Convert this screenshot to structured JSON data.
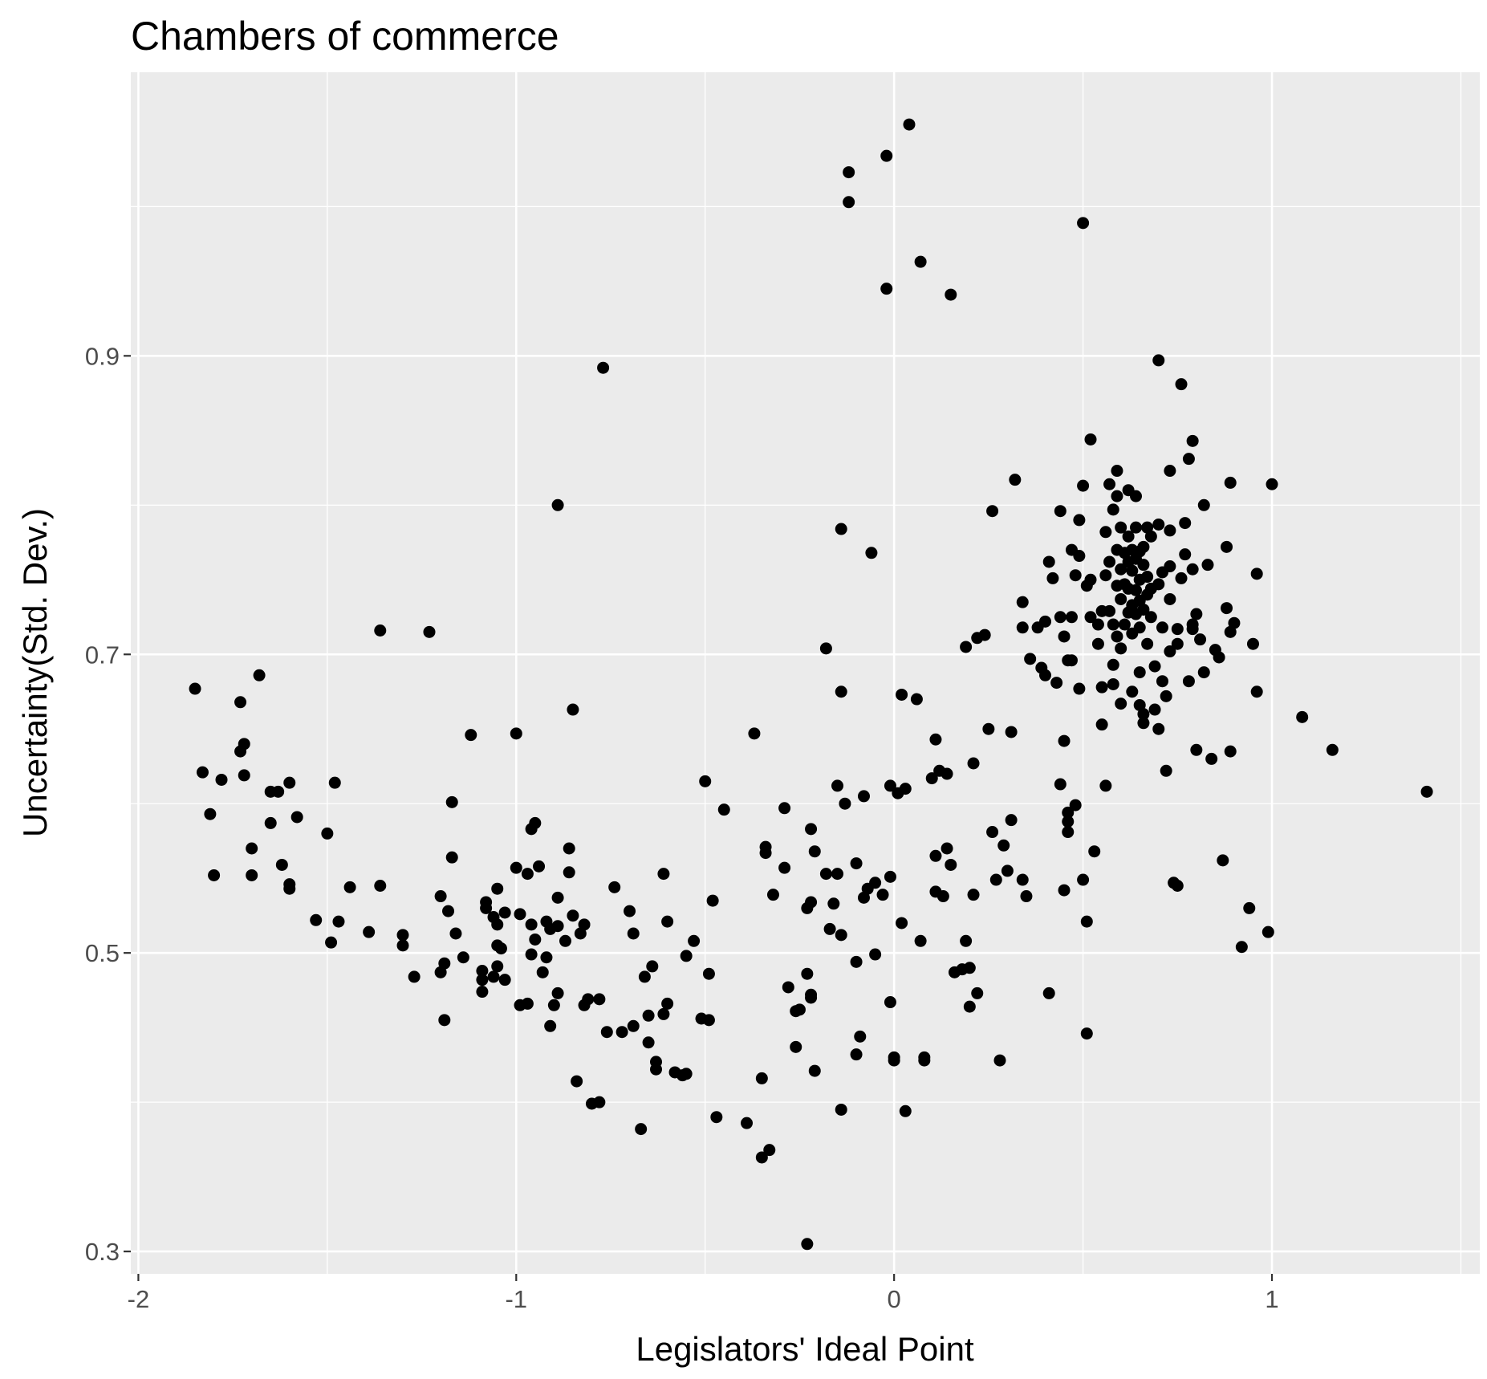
{
  "chart_data": {
    "type": "scatter",
    "title": "Chambers of commerce",
    "xlabel": "Legislators' Ideal Point",
    "ylabel": "Uncertainty(Std. Dev.)",
    "xlim": [
      -2.02,
      1.55
    ],
    "ylim": [
      0.285,
      1.09
    ],
    "x_ticks": [
      -2,
      -1,
      0,
      1
    ],
    "x_tick_labels": [
      "-2",
      "-1",
      "0",
      "1"
    ],
    "y_ticks": [
      0.3,
      0.5,
      0.7,
      0.9
    ],
    "y_tick_labels": [
      "0.3",
      "0.5",
      "0.7",
      "0.9"
    ],
    "x_minor_ticks": [
      -1.5,
      -0.5,
      0.5,
      1.5
    ],
    "y_minor_ticks": [
      0.4,
      0.6,
      0.8,
      1.0
    ],
    "grid": true,
    "panel_background": "#ebebeb",
    "point_color": "#000000",
    "points": [
      [
        -1.85,
        0.677
      ],
      [
        -1.68,
        0.686
      ],
      [
        -1.73,
        0.668
      ],
      [
        -1.73,
        0.635
      ],
      [
        -1.72,
        0.64
      ],
      [
        -1.72,
        0.619
      ],
      [
        -1.83,
        0.621
      ],
      [
        -1.78,
        0.616
      ],
      [
        -1.81,
        0.593
      ],
      [
        -1.8,
        0.552
      ],
      [
        -1.7,
        0.57
      ],
      [
        -1.7,
        0.552
      ],
      [
        -1.63,
        0.608
      ],
      [
        -1.65,
        0.608
      ],
      [
        -1.6,
        0.614
      ],
      [
        -1.58,
        0.591
      ],
      [
        -1.65,
        0.587
      ],
      [
        -1.62,
        0.559
      ],
      [
        -1.6,
        0.546
      ],
      [
        -1.6,
        0.543
      ],
      [
        -1.48,
        0.614
      ],
      [
        -1.5,
        0.58
      ],
      [
        -1.53,
        0.522
      ],
      [
        -1.47,
        0.521
      ],
      [
        -1.49,
        0.507
      ],
      [
        -1.44,
        0.544
      ],
      [
        -1.36,
        0.716
      ],
      [
        -1.23,
        0.715
      ],
      [
        -1.36,
        0.545
      ],
      [
        -1.39,
        0.514
      ],
      [
        -1.3,
        0.512
      ],
      [
        -1.3,
        0.505
      ],
      [
        -1.27,
        0.484
      ],
      [
        -1.2,
        0.538
      ],
      [
        -1.18,
        0.528
      ],
      [
        -1.17,
        0.601
      ],
      [
        -1.17,
        0.564
      ],
      [
        -1.16,
        0.513
      ],
      [
        -1.19,
        0.493
      ],
      [
        -1.2,
        0.487
      ],
      [
        -1.19,
        0.455
      ],
      [
        -1.14,
        0.497
      ],
      [
        -1.12,
        0.646
      ],
      [
        -1.09,
        0.488
      ],
      [
        -1.09,
        0.482
      ],
      [
        -1.09,
        0.474
      ],
      [
        -1.08,
        0.53
      ],
      [
        -1.08,
        0.534
      ],
      [
        -1.06,
        0.524
      ],
      [
        -1.05,
        0.543
      ],
      [
        -1.05,
        0.519
      ],
      [
        -1.05,
        0.505
      ],
      [
        -1.04,
        0.503
      ],
      [
        -1.05,
        0.491
      ],
      [
        -1.06,
        0.484
      ],
      [
        -1.03,
        0.527
      ],
      [
        -1.03,
        0.482
      ],
      [
        -1.0,
        0.647
      ],
      [
        -1.0,
        0.557
      ],
      [
        -0.99,
        0.526
      ],
      [
        -0.99,
        0.465
      ],
      [
        -0.97,
        0.466
      ],
      [
        -0.96,
        0.583
      ],
      [
        -0.96,
        0.519
      ],
      [
        -0.95,
        0.587
      ],
      [
        -0.95,
        0.509
      ],
      [
        -0.97,
        0.553
      ],
      [
        -0.96,
        0.499
      ],
      [
        -0.94,
        0.558
      ],
      [
        -0.93,
        0.487
      ],
      [
        -0.92,
        0.521
      ],
      [
        -0.92,
        0.497
      ],
      [
        -0.91,
        0.516
      ],
      [
        -0.91,
        0.451
      ],
      [
        -0.9,
        0.465
      ],
      [
        -0.89,
        0.8
      ],
      [
        -0.89,
        0.537
      ],
      [
        -0.89,
        0.518
      ],
      [
        -0.89,
        0.473
      ],
      [
        -0.87,
        0.508
      ],
      [
        -0.86,
        0.57
      ],
      [
        -0.86,
        0.554
      ],
      [
        -0.85,
        0.663
      ],
      [
        -0.85,
        0.525
      ],
      [
        -0.83,
        0.513
      ],
      [
        -0.82,
        0.519
      ],
      [
        -0.82,
        0.465
      ],
      [
        -0.81,
        0.469
      ],
      [
        -0.84,
        0.414
      ],
      [
        -0.8,
        0.399
      ],
      [
        -0.78,
        0.4
      ],
      [
        -0.78,
        0.469
      ],
      [
        -0.77,
        0.892
      ],
      [
        -0.76,
        0.447
      ],
      [
        -0.74,
        0.544
      ],
      [
        -0.72,
        0.447
      ],
      [
        -0.7,
        0.528
      ],
      [
        -0.69,
        0.513
      ],
      [
        -0.69,
        0.451
      ],
      [
        -0.67,
        0.382
      ],
      [
        -0.66,
        0.484
      ],
      [
        -0.64,
        0.491
      ],
      [
        -0.65,
        0.458
      ],
      [
        -0.65,
        0.44
      ],
      [
        -0.63,
        0.427
      ],
      [
        -0.63,
        0.422
      ],
      [
        -0.61,
        0.553
      ],
      [
        -0.6,
        0.521
      ],
      [
        -0.6,
        0.466
      ],
      [
        -0.61,
        0.459
      ],
      [
        -0.58,
        0.42
      ],
      [
        -0.56,
        0.418
      ],
      [
        -0.55,
        0.419
      ],
      [
        -0.55,
        0.498
      ],
      [
        -0.53,
        0.508
      ],
      [
        -0.51,
        0.456
      ],
      [
        -0.5,
        0.615
      ],
      [
        -0.49,
        0.486
      ],
      [
        -0.49,
        0.455
      ],
      [
        -0.48,
        0.535
      ],
      [
        -0.47,
        0.39
      ],
      [
        -0.45,
        0.596
      ],
      [
        -0.39,
        0.386
      ],
      [
        -0.37,
        0.647
      ],
      [
        -0.35,
        0.416
      ],
      [
        -0.35,
        0.363
      ],
      [
        -0.34,
        0.571
      ],
      [
        -0.34,
        0.567
      ],
      [
        -0.32,
        0.539
      ],
      [
        -0.33,
        0.368
      ],
      [
        -0.29,
        0.597
      ],
      [
        -0.29,
        0.557
      ],
      [
        -0.28,
        0.477
      ],
      [
        -0.26,
        0.437
      ],
      [
        -0.26,
        0.461
      ],
      [
        -0.25,
        0.462
      ],
      [
        -0.23,
        0.53
      ],
      [
        -0.23,
        0.486
      ],
      [
        -0.22,
        0.583
      ],
      [
        -0.22,
        0.534
      ],
      [
        -0.22,
        0.472
      ],
      [
        -0.22,
        0.47
      ],
      [
        -0.21,
        0.568
      ],
      [
        -0.21,
        0.421
      ],
      [
        -0.23,
        0.305
      ],
      [
        -0.18,
        0.704
      ],
      [
        -0.18,
        0.553
      ],
      [
        -0.17,
        0.516
      ],
      [
        -0.16,
        0.533
      ],
      [
        -0.15,
        0.612
      ],
      [
        -0.15,
        0.553
      ],
      [
        -0.14,
        0.784
      ],
      [
        -0.14,
        0.675
      ],
      [
        -0.14,
        0.512
      ],
      [
        -0.13,
        0.6
      ],
      [
        -0.14,
        0.395
      ],
      [
        -0.12,
        1.023
      ],
      [
        -0.12,
        1.003
      ],
      [
        -0.1,
        0.56
      ],
      [
        -0.1,
        0.494
      ],
      [
        -0.1,
        0.432
      ],
      [
        -0.09,
        0.444
      ],
      [
        -0.08,
        0.605
      ],
      [
        -0.08,
        0.537
      ],
      [
        -0.07,
        0.543
      ],
      [
        -0.06,
        0.768
      ],
      [
        -0.05,
        0.499
      ],
      [
        -0.05,
        0.547
      ],
      [
        -0.03,
        0.539
      ],
      [
        -0.01,
        0.612
      ],
      [
        -0.02,
        0.945
      ],
      [
        -0.02,
        1.034
      ],
      [
        -0.01,
        0.551
      ],
      [
        -0.01,
        0.467
      ],
      [
        0.0,
        0.43
      ],
      [
        0.0,
        0.428
      ],
      [
        0.01,
        0.607
      ],
      [
        0.02,
        0.673
      ],
      [
        0.02,
        0.52
      ],
      [
        0.03,
        0.61
      ],
      [
        0.03,
        0.394
      ],
      [
        0.04,
        1.055
      ],
      [
        0.06,
        0.67
      ],
      [
        0.07,
        0.963
      ],
      [
        0.07,
        0.508
      ],
      [
        0.08,
        0.43
      ],
      [
        0.08,
        0.428
      ],
      [
        0.1,
        0.617
      ],
      [
        0.11,
        0.643
      ],
      [
        0.11,
        0.565
      ],
      [
        0.11,
        0.541
      ],
      [
        0.12,
        0.622
      ],
      [
        0.13,
        0.538
      ],
      [
        0.14,
        0.62
      ],
      [
        0.14,
        0.57
      ],
      [
        0.15,
        0.559
      ],
      [
        0.15,
        0.941
      ],
      [
        0.16,
        0.487
      ],
      [
        0.18,
        0.489
      ],
      [
        0.19,
        0.705
      ],
      [
        0.19,
        0.508
      ],
      [
        0.2,
        0.49
      ],
      [
        0.2,
        0.464
      ],
      [
        0.21,
        0.627
      ],
      [
        0.21,
        0.539
      ],
      [
        0.22,
        0.711
      ],
      [
        0.22,
        0.473
      ],
      [
        0.24,
        0.713
      ],
      [
        0.25,
        0.65
      ],
      [
        0.26,
        0.796
      ],
      [
        0.26,
        0.581
      ],
      [
        0.27,
        0.549
      ],
      [
        0.28,
        0.428
      ],
      [
        0.29,
        0.572
      ],
      [
        0.3,
        0.555
      ],
      [
        0.31,
        0.589
      ],
      [
        0.31,
        0.648
      ],
      [
        0.32,
        0.817
      ],
      [
        0.34,
        0.549
      ],
      [
        0.34,
        0.735
      ],
      [
        0.34,
        0.718
      ],
      [
        0.35,
        0.538
      ],
      [
        0.36,
        0.697
      ],
      [
        0.38,
        0.718
      ],
      [
        0.39,
        0.691
      ],
      [
        0.4,
        0.722
      ],
      [
        0.4,
        0.686
      ],
      [
        0.41,
        0.762
      ],
      [
        0.41,
        0.473
      ],
      [
        0.42,
        0.751
      ],
      [
        0.43,
        0.681
      ],
      [
        0.44,
        0.613
      ],
      [
        0.44,
        0.796
      ],
      [
        0.44,
        0.725
      ],
      [
        0.45,
        0.712
      ],
      [
        0.45,
        0.542
      ],
      [
        0.45,
        0.642
      ],
      [
        0.46,
        0.594
      ],
      [
        0.46,
        0.588
      ],
      [
        0.46,
        0.581
      ],
      [
        0.46,
        0.696
      ],
      [
        0.47,
        0.77
      ],
      [
        0.47,
        0.725
      ],
      [
        0.47,
        0.696
      ],
      [
        0.48,
        0.599
      ],
      [
        0.48,
        0.753
      ],
      [
        0.49,
        0.79
      ],
      [
        0.49,
        0.766
      ],
      [
        0.49,
        0.677
      ],
      [
        0.5,
        0.989
      ],
      [
        0.5,
        0.813
      ],
      [
        0.5,
        0.549
      ],
      [
        0.51,
        0.746
      ],
      [
        0.51,
        0.521
      ],
      [
        0.51,
        0.446
      ],
      [
        0.52,
        0.844
      ],
      [
        0.52,
        0.75
      ],
      [
        0.52,
        0.725
      ],
      [
        0.53,
        0.568
      ],
      [
        0.54,
        0.72
      ],
      [
        0.54,
        0.707
      ],
      [
        0.55,
        0.678
      ],
      [
        0.55,
        0.653
      ],
      [
        0.55,
        0.729
      ],
      [
        0.56,
        0.782
      ],
      [
        0.56,
        0.753
      ],
      [
        0.56,
        0.612
      ],
      [
        0.57,
        0.814
      ],
      [
        0.57,
        0.762
      ],
      [
        0.57,
        0.729
      ],
      [
        0.58,
        0.797
      ],
      [
        0.58,
        0.72
      ],
      [
        0.58,
        0.693
      ],
      [
        0.58,
        0.68
      ],
      [
        0.59,
        0.823
      ],
      [
        0.59,
        0.806
      ],
      [
        0.59,
        0.77
      ],
      [
        0.59,
        0.746
      ],
      [
        0.59,
        0.712
      ],
      [
        0.6,
        0.785
      ],
      [
        0.6,
        0.757
      ],
      [
        0.6,
        0.737
      ],
      [
        0.6,
        0.704
      ],
      [
        0.6,
        0.667
      ],
      [
        0.61,
        0.768
      ],
      [
        0.61,
        0.747
      ],
      [
        0.61,
        0.72
      ],
      [
        0.62,
        0.81
      ],
      [
        0.62,
        0.779
      ],
      [
        0.62,
        0.762
      ],
      [
        0.62,
        0.744
      ],
      [
        0.62,
        0.728
      ],
      [
        0.63,
        0.77
      ],
      [
        0.63,
        0.756
      ],
      [
        0.63,
        0.733
      ],
      [
        0.63,
        0.714
      ],
      [
        0.63,
        0.675
      ],
      [
        0.64,
        0.806
      ],
      [
        0.64,
        0.785
      ],
      [
        0.64,
        0.764
      ],
      [
        0.64,
        0.743
      ],
      [
        0.64,
        0.727
      ],
      [
        0.65,
        0.769
      ],
      [
        0.65,
        0.75
      ],
      [
        0.65,
        0.736
      ],
      [
        0.65,
        0.718
      ],
      [
        0.65,
        0.688
      ],
      [
        0.65,
        0.666
      ],
      [
        0.66,
        0.772
      ],
      [
        0.66,
        0.76
      ],
      [
        0.66,
        0.73
      ],
      [
        0.66,
        0.66
      ],
      [
        0.66,
        0.654
      ],
      [
        0.67,
        0.785
      ],
      [
        0.67,
        0.752
      ],
      [
        0.67,
        0.74
      ],
      [
        0.67,
        0.707
      ],
      [
        0.68,
        0.779
      ],
      [
        0.68,
        0.744
      ],
      [
        0.68,
        0.725
      ],
      [
        0.69,
        0.692
      ],
      [
        0.69,
        0.663
      ],
      [
        0.7,
        0.897
      ],
      [
        0.7,
        0.787
      ],
      [
        0.7,
        0.747
      ],
      [
        0.7,
        0.65
      ],
      [
        0.71,
        0.755
      ],
      [
        0.71,
        0.718
      ],
      [
        0.71,
        0.682
      ],
      [
        0.72,
        0.622
      ],
      [
        0.72,
        0.672
      ],
      [
        0.73,
        0.823
      ],
      [
        0.73,
        0.783
      ],
      [
        0.73,
        0.759
      ],
      [
        0.73,
        0.737
      ],
      [
        0.73,
        0.702
      ],
      [
        0.74,
        0.547
      ],
      [
        0.75,
        0.545
      ],
      [
        0.75,
        0.717
      ],
      [
        0.75,
        0.707
      ],
      [
        0.76,
        0.881
      ],
      [
        0.76,
        0.751
      ],
      [
        0.77,
        0.767
      ],
      [
        0.77,
        0.788
      ],
      [
        0.78,
        0.831
      ],
      [
        0.78,
        0.682
      ],
      [
        0.79,
        0.843
      ],
      [
        0.79,
        0.757
      ],
      [
        0.79,
        0.72
      ],
      [
        0.79,
        0.717
      ],
      [
        0.8,
        0.636
      ],
      [
        0.8,
        0.727
      ],
      [
        0.81,
        0.71
      ],
      [
        0.82,
        0.8
      ],
      [
        0.82,
        0.688
      ],
      [
        0.83,
        0.76
      ],
      [
        0.84,
        0.63
      ],
      [
        0.85,
        0.703
      ],
      [
        0.86,
        0.698
      ],
      [
        0.87,
        0.562
      ],
      [
        0.88,
        0.772
      ],
      [
        0.88,
        0.731
      ],
      [
        0.89,
        0.635
      ],
      [
        0.89,
        0.715
      ],
      [
        0.89,
        0.815
      ],
      [
        0.9,
        0.721
      ],
      [
        0.92,
        0.504
      ],
      [
        0.94,
        0.53
      ],
      [
        0.95,
        0.707
      ],
      [
        0.96,
        0.754
      ],
      [
        0.96,
        0.675
      ],
      [
        0.99,
        0.514
      ],
      [
        1.0,
        0.814
      ],
      [
        1.08,
        0.658
      ],
      [
        1.16,
        0.636
      ],
      [
        1.41,
        0.608
      ]
    ]
  }
}
